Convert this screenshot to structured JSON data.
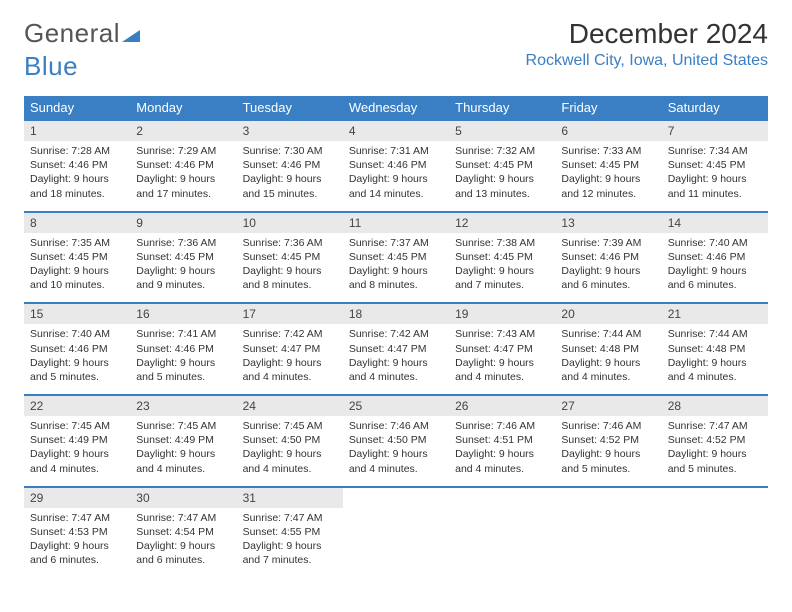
{
  "logo": {
    "text1": "General",
    "text2": "Blue"
  },
  "title": "December 2024",
  "location": "Rockwell City, Iowa, United States",
  "weekdays": [
    "Sunday",
    "Monday",
    "Tuesday",
    "Wednesday",
    "Thursday",
    "Friday",
    "Saturday"
  ],
  "colors": {
    "header_bar": "#3a7fc4",
    "daynum_bg": "#e9e9e9",
    "text": "#333333",
    "accent": "#3a7fc4"
  },
  "weeks": [
    [
      {
        "n": "1",
        "sr": "Sunrise: 7:28 AM",
        "ss": "Sunset: 4:46 PM",
        "d1": "Daylight: 9 hours",
        "d2": "and 18 minutes."
      },
      {
        "n": "2",
        "sr": "Sunrise: 7:29 AM",
        "ss": "Sunset: 4:46 PM",
        "d1": "Daylight: 9 hours",
        "d2": "and 17 minutes."
      },
      {
        "n": "3",
        "sr": "Sunrise: 7:30 AM",
        "ss": "Sunset: 4:46 PM",
        "d1": "Daylight: 9 hours",
        "d2": "and 15 minutes."
      },
      {
        "n": "4",
        "sr": "Sunrise: 7:31 AM",
        "ss": "Sunset: 4:46 PM",
        "d1": "Daylight: 9 hours",
        "d2": "and 14 minutes."
      },
      {
        "n": "5",
        "sr": "Sunrise: 7:32 AM",
        "ss": "Sunset: 4:45 PM",
        "d1": "Daylight: 9 hours",
        "d2": "and 13 minutes."
      },
      {
        "n": "6",
        "sr": "Sunrise: 7:33 AM",
        "ss": "Sunset: 4:45 PM",
        "d1": "Daylight: 9 hours",
        "d2": "and 12 minutes."
      },
      {
        "n": "7",
        "sr": "Sunrise: 7:34 AM",
        "ss": "Sunset: 4:45 PM",
        "d1": "Daylight: 9 hours",
        "d2": "and 11 minutes."
      }
    ],
    [
      {
        "n": "8",
        "sr": "Sunrise: 7:35 AM",
        "ss": "Sunset: 4:45 PM",
        "d1": "Daylight: 9 hours",
        "d2": "and 10 minutes."
      },
      {
        "n": "9",
        "sr": "Sunrise: 7:36 AM",
        "ss": "Sunset: 4:45 PM",
        "d1": "Daylight: 9 hours",
        "d2": "and 9 minutes."
      },
      {
        "n": "10",
        "sr": "Sunrise: 7:36 AM",
        "ss": "Sunset: 4:45 PM",
        "d1": "Daylight: 9 hours",
        "d2": "and 8 minutes."
      },
      {
        "n": "11",
        "sr": "Sunrise: 7:37 AM",
        "ss": "Sunset: 4:45 PM",
        "d1": "Daylight: 9 hours",
        "d2": "and 8 minutes."
      },
      {
        "n": "12",
        "sr": "Sunrise: 7:38 AM",
        "ss": "Sunset: 4:45 PM",
        "d1": "Daylight: 9 hours",
        "d2": "and 7 minutes."
      },
      {
        "n": "13",
        "sr": "Sunrise: 7:39 AM",
        "ss": "Sunset: 4:46 PM",
        "d1": "Daylight: 9 hours",
        "d2": "and 6 minutes."
      },
      {
        "n": "14",
        "sr": "Sunrise: 7:40 AM",
        "ss": "Sunset: 4:46 PM",
        "d1": "Daylight: 9 hours",
        "d2": "and 6 minutes."
      }
    ],
    [
      {
        "n": "15",
        "sr": "Sunrise: 7:40 AM",
        "ss": "Sunset: 4:46 PM",
        "d1": "Daylight: 9 hours",
        "d2": "and 5 minutes."
      },
      {
        "n": "16",
        "sr": "Sunrise: 7:41 AM",
        "ss": "Sunset: 4:46 PM",
        "d1": "Daylight: 9 hours",
        "d2": "and 5 minutes."
      },
      {
        "n": "17",
        "sr": "Sunrise: 7:42 AM",
        "ss": "Sunset: 4:47 PM",
        "d1": "Daylight: 9 hours",
        "d2": "and 4 minutes."
      },
      {
        "n": "18",
        "sr": "Sunrise: 7:42 AM",
        "ss": "Sunset: 4:47 PM",
        "d1": "Daylight: 9 hours",
        "d2": "and 4 minutes."
      },
      {
        "n": "19",
        "sr": "Sunrise: 7:43 AM",
        "ss": "Sunset: 4:47 PM",
        "d1": "Daylight: 9 hours",
        "d2": "and 4 minutes."
      },
      {
        "n": "20",
        "sr": "Sunrise: 7:44 AM",
        "ss": "Sunset: 4:48 PM",
        "d1": "Daylight: 9 hours",
        "d2": "and 4 minutes."
      },
      {
        "n": "21",
        "sr": "Sunrise: 7:44 AM",
        "ss": "Sunset: 4:48 PM",
        "d1": "Daylight: 9 hours",
        "d2": "and 4 minutes."
      }
    ],
    [
      {
        "n": "22",
        "sr": "Sunrise: 7:45 AM",
        "ss": "Sunset: 4:49 PM",
        "d1": "Daylight: 9 hours",
        "d2": "and 4 minutes."
      },
      {
        "n": "23",
        "sr": "Sunrise: 7:45 AM",
        "ss": "Sunset: 4:49 PM",
        "d1": "Daylight: 9 hours",
        "d2": "and 4 minutes."
      },
      {
        "n": "24",
        "sr": "Sunrise: 7:45 AM",
        "ss": "Sunset: 4:50 PM",
        "d1": "Daylight: 9 hours",
        "d2": "and 4 minutes."
      },
      {
        "n": "25",
        "sr": "Sunrise: 7:46 AM",
        "ss": "Sunset: 4:50 PM",
        "d1": "Daylight: 9 hours",
        "d2": "and 4 minutes."
      },
      {
        "n": "26",
        "sr": "Sunrise: 7:46 AM",
        "ss": "Sunset: 4:51 PM",
        "d1": "Daylight: 9 hours",
        "d2": "and 4 minutes."
      },
      {
        "n": "27",
        "sr": "Sunrise: 7:46 AM",
        "ss": "Sunset: 4:52 PM",
        "d1": "Daylight: 9 hours",
        "d2": "and 5 minutes."
      },
      {
        "n": "28",
        "sr": "Sunrise: 7:47 AM",
        "ss": "Sunset: 4:52 PM",
        "d1": "Daylight: 9 hours",
        "d2": "and 5 minutes."
      }
    ],
    [
      {
        "n": "29",
        "sr": "Sunrise: 7:47 AM",
        "ss": "Sunset: 4:53 PM",
        "d1": "Daylight: 9 hours",
        "d2": "and 6 minutes."
      },
      {
        "n": "30",
        "sr": "Sunrise: 7:47 AM",
        "ss": "Sunset: 4:54 PM",
        "d1": "Daylight: 9 hours",
        "d2": "and 6 minutes."
      },
      {
        "n": "31",
        "sr": "Sunrise: 7:47 AM",
        "ss": "Sunset: 4:55 PM",
        "d1": "Daylight: 9 hours",
        "d2": "and 7 minutes."
      },
      null,
      null,
      null,
      null
    ]
  ]
}
